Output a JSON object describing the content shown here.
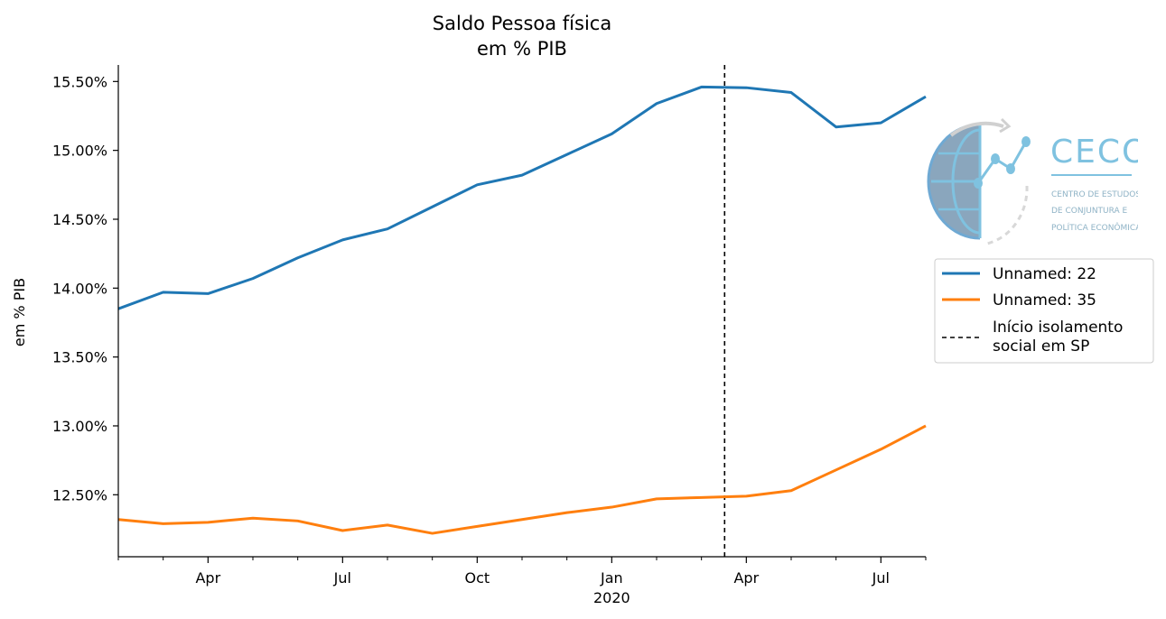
{
  "chart_data": {
    "type": "line",
    "title": [
      "Saldo Pessoa física",
      "em % PIB"
    ],
    "ylabel": "em % PIB",
    "xlabel": "",
    "x": [
      "2019-02",
      "2019-03",
      "2019-04",
      "2019-05",
      "2019-06",
      "2019-07",
      "2019-08",
      "2019-09",
      "2019-10",
      "2019-11",
      "2019-12",
      "2020-01",
      "2020-02",
      "2020-03",
      "2020-04",
      "2020-05",
      "2020-06",
      "2020-07",
      "2020-08"
    ],
    "x_range": [
      "2019-02",
      "2020-08"
    ],
    "ylim": [
      12.05,
      15.62
    ],
    "yticks": [
      12.5,
      13.0,
      13.5,
      14.0,
      14.5,
      15.0,
      15.5
    ],
    "ytick_labels": [
      "12.50%",
      "13.00%",
      "13.50%",
      "14.00%",
      "14.50%",
      "15.00%",
      "15.50%"
    ],
    "xticks": [
      {
        "date": "2019-04",
        "label": "Apr"
      },
      {
        "date": "2019-07",
        "label": "Jul"
      },
      {
        "date": "2019-10",
        "label": "Oct"
      },
      {
        "date": "2020-01",
        "label": "Jan",
        "sublabel": "2020"
      },
      {
        "date": "2020-04",
        "label": "Apr"
      },
      {
        "date": "2020-07",
        "label": "Jul"
      }
    ],
    "xminor_ticks": [
      "2019-02",
      "2019-03",
      "2019-05",
      "2019-06",
      "2019-08",
      "2019-09",
      "2019-11",
      "2019-12",
      "2020-02",
      "2020-03",
      "2020-05",
      "2020-06",
      "2020-08"
    ],
    "series": [
      {
        "name": "Unnamed: 22",
        "color": "#1f77b4",
        "values": [
          13.85,
          13.97,
          13.96,
          14.07,
          14.22,
          14.35,
          14.43,
          14.59,
          14.75,
          14.82,
          14.97,
          15.12,
          15.34,
          15.46,
          15.455,
          15.42,
          15.17,
          15.2,
          15.39
        ]
      },
      {
        "name": "Unnamed: 35",
        "color": "#ff7f0e",
        "values": [
          12.32,
          12.29,
          12.3,
          12.33,
          12.31,
          12.24,
          12.28,
          12.22,
          12.27,
          12.32,
          12.37,
          12.41,
          12.47,
          12.48,
          12.49,
          12.53,
          12.68,
          12.83,
          13.0
        ]
      }
    ],
    "vline": {
      "date": "2020-03-17",
      "label": [
        "Início isolamento",
        "social em SP"
      ],
      "style": "dashed",
      "color": "#000000"
    },
    "legend_placement": "right",
    "grid": false
  },
  "logo": {
    "brand": "CECON",
    "subtitle": [
      "CENTRO DE ESTUDOS",
      "DE CONJUNTURA E",
      "POLÍTICA ECONÔMICA"
    ]
  }
}
